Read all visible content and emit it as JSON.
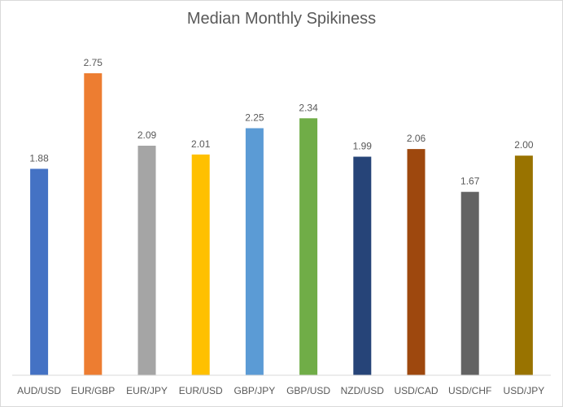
{
  "chart_data": {
    "type": "bar",
    "title": "Median Monthly Spikiness",
    "xlabel": "",
    "ylabel": "",
    "ylim": [
      0,
      3
    ],
    "grid": false,
    "legend": "none",
    "categories": [
      "AUD/USD",
      "EUR/GBP",
      "EUR/JPY",
      "EUR/USD",
      "GBP/JPY",
      "GBP/USD",
      "NZD/USD",
      "USD/CAD",
      "USD/CHF",
      "USD/JPY"
    ],
    "values": [
      1.88,
      2.75,
      2.09,
      2.01,
      2.25,
      2.34,
      1.99,
      2.06,
      1.67,
      2.0
    ],
    "value_labels": [
      "1.88",
      "2.75",
      "2.09",
      "2.01",
      "2.25",
      "2.34",
      "1.99",
      "2.06",
      "1.67",
      "2.00"
    ],
    "colors": [
      "#4472c4",
      "#ed7d31",
      "#a5a5a5",
      "#ffc000",
      "#5b9bd5",
      "#70ad47",
      "#264478",
      "#9e480e",
      "#636363",
      "#997300"
    ],
    "axis_color": "#d9d9d9"
  }
}
